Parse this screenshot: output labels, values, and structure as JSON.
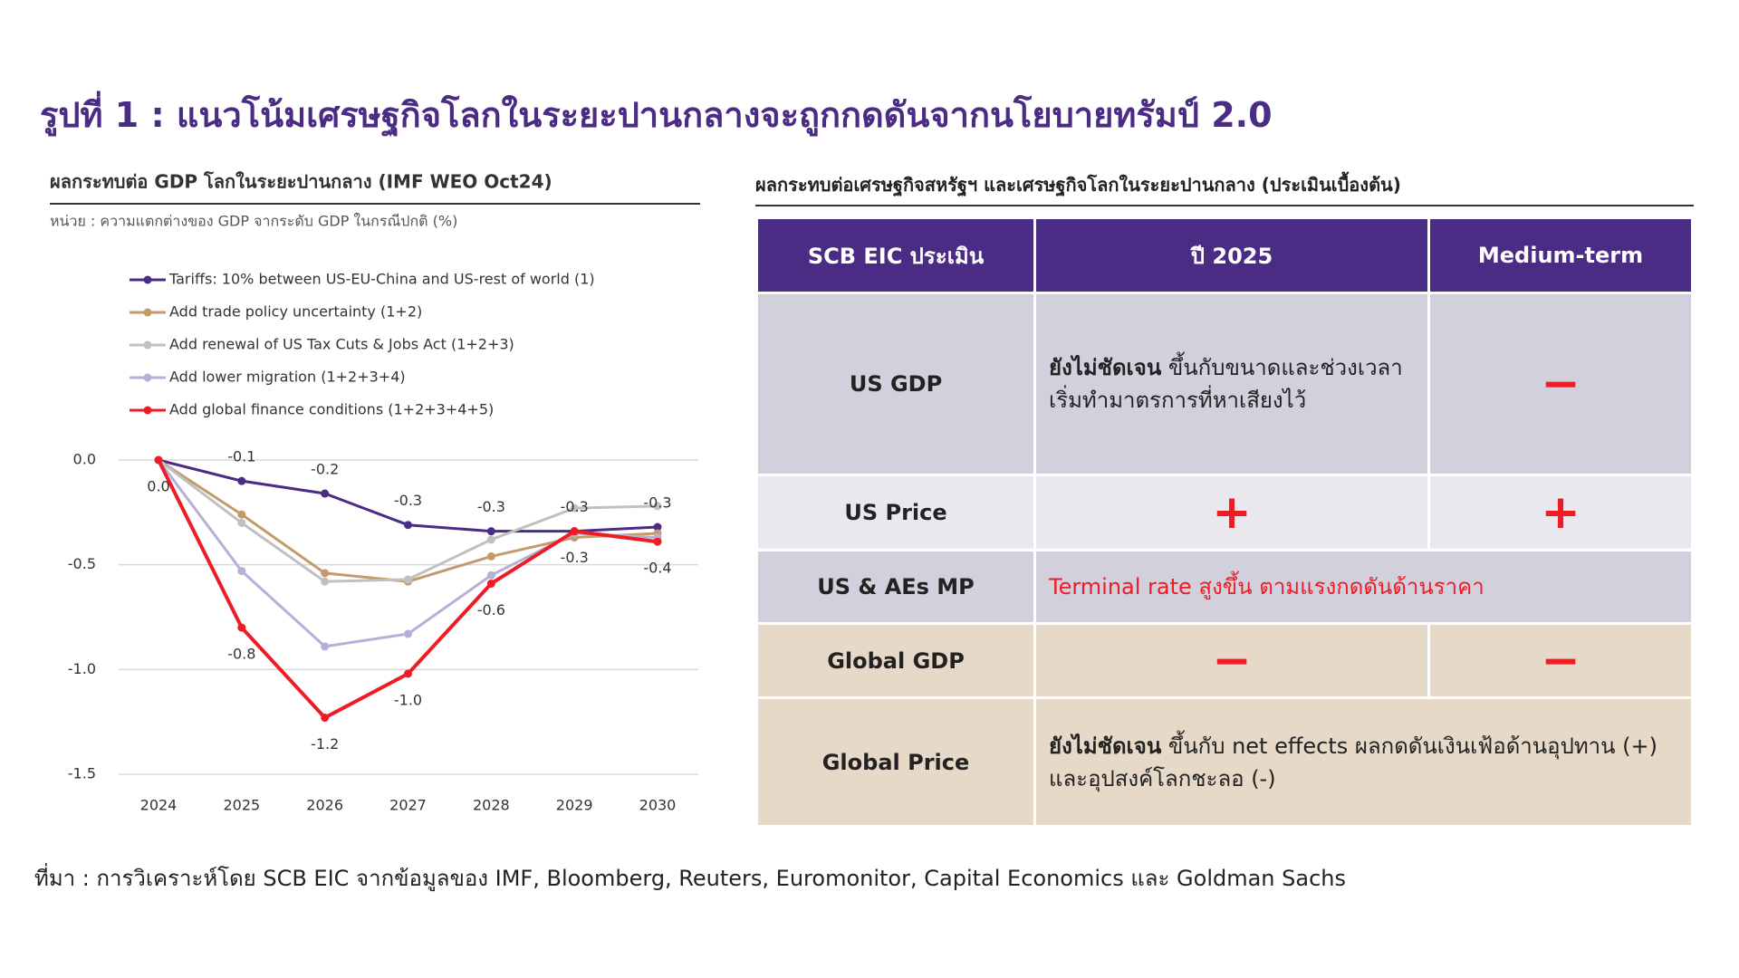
{
  "header": {
    "title": "รูปที่ 1 : แนวโน้มเศรษฐกิจโลกในระยะปานกลางจะถูกกดดันจากนโยบายทรัมป์ 2.0"
  },
  "chart_data": {
    "type": "line",
    "title": "ผลกระทบต่อ GDP โลกในระยะปานกลาง (IMF WEO Oct24)",
    "subtitle": "หน่วย : ความแตกต่างของ GDP จากระดับ GDP ในกรณีปกติ (%)",
    "categories": [
      "2024",
      "2025",
      "2026",
      "2027",
      "2028",
      "2029",
      "2030"
    ],
    "ylim": [
      -1.5,
      0
    ],
    "yticks": [
      {
        "value": 0,
        "label": "0.0"
      },
      -0.5,
      {
        "value": -1,
        "label": "-1.0"
      },
      -1.5
    ],
    "grid": true,
    "series": [
      {
        "name": "Tariffs: 10% between US-EU-China and US-rest of world (1)",
        "color": "#4b2c85",
        "values": [
          0,
          -0.1,
          -0.16,
          -0.31,
          -0.34,
          -0.34,
          -0.32
        ],
        "value_labels": [
          null,
          "-0.1",
          "-0.2",
          "-0.3",
          "-0.3",
          "-0.3",
          "-0.3"
        ]
      },
      {
        "name": "Add trade policy uncertainty (1+2)",
        "color": "#c49a6c",
        "values": [
          0,
          -0.26,
          -0.54,
          -0.58,
          -0.46,
          -0.37,
          -0.35
        ]
      },
      {
        "name": "Add renewal of US Tax Cuts & Jobs Act (1+2+3)",
        "color": "#c0c0c0",
        "values": [
          0,
          -0.3,
          -0.58,
          -0.57,
          -0.38,
          -0.23,
          -0.22
        ]
      },
      {
        "name": "Add lower migration (1+2+3+4)",
        "color": "#b4b0d6",
        "values": [
          0,
          -0.53,
          -0.89,
          -0.83,
          -0.55,
          -0.35,
          -0.37
        ]
      },
      {
        "name": "Add global finance conditions (1+2+3+4+5)",
        "color": "#ee1c25",
        "values": [
          0,
          -0.8,
          -1.23,
          -1.02,
          -0.59,
          -0.34,
          -0.39
        ],
        "value_labels": [
          "0.0",
          "-0.8",
          "-1.2",
          "-1.0",
          "-0.6",
          "-0.3",
          "-0.4"
        ]
      }
    ]
  },
  "table": {
    "title": "ผลกระทบต่อเศรษฐกิจสหรัฐฯ และเศรษฐกิจโลกในระยะปานกลาง (ประเมินเบื้องต้น)",
    "header": [
      "SCB EIC ประเมิน",
      "ปี 2025",
      "Medium-term"
    ],
    "rows": [
      {
        "label": "US GDP",
        "y2025": {
          "emphasis": "ยังไม่ชัดเจน",
          "text": "ขึ้นกับขนาดและช่วงเวลาเริ่มทำมาตรการที่หาเสียงไว้"
        },
        "medium": "−"
      },
      {
        "label": "US Price",
        "y2025": "+",
        "medium": "+"
      },
      {
        "label": "US & AEs MP",
        "combined": "Terminal rate สูงขึ้น ตามแรงกดดันด้านราคา"
      },
      {
        "label": "Global GDP",
        "y2025": "−",
        "medium": "−"
      },
      {
        "label": "Global Price",
        "combined": {
          "emphasis": "ยังไม่ชัดเจน",
          "text": "ขึ้นกับ net effects ผลกดดันเงินเฟ้อด้านอุปทาน (+) และอุปสงค์โลกชะลอ (-)"
        }
      }
    ]
  },
  "source": "ที่มา : การวิเคราะห์โดย SCB EIC จากข้อมูลของ IMF, Bloomberg, Reuters, Euromonitor, Capital Economics และ Goldman Sachs"
}
